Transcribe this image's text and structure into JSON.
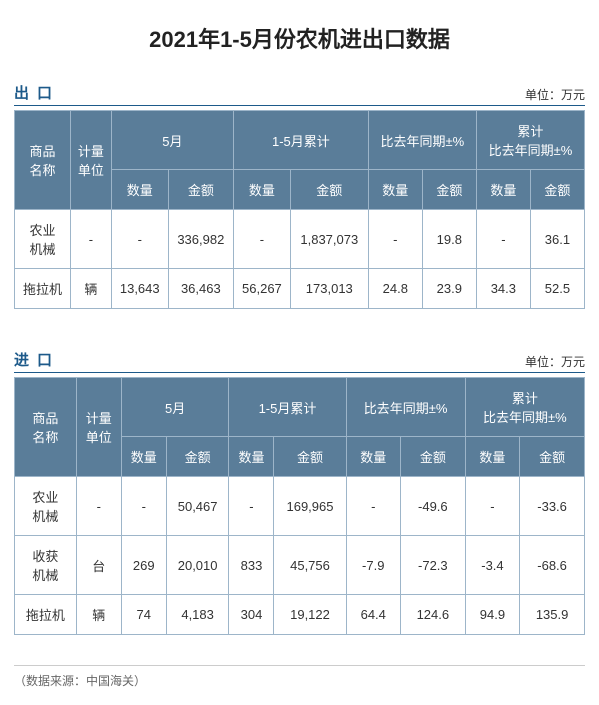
{
  "title": "2021年1-5月份农机进出口数据",
  "unitLabel": "单位：万元",
  "headers": {
    "product": "商品\n名称",
    "measure": "计量\n单位",
    "month": "5月",
    "ytd": "1-5月累计",
    "yoy": "比去年同期±%",
    "yoyCum": "累计\n比去年同期±%",
    "qty": "数量",
    "amt": "金额"
  },
  "export": {
    "label": "出口",
    "rows": [
      {
        "product": "农业\n机械",
        "measure": "-",
        "mQty": "-",
        "mAmt": "336,982",
        "yQty": "-",
        "yAmt": "1,837,073",
        "oQty": "-",
        "oAmt": "19.8",
        "cQty": "-",
        "cAmt": "36.1"
      },
      {
        "product": "拖拉机",
        "measure": "辆",
        "mQty": "13,643",
        "mAmt": "36,463",
        "yQty": "56,267",
        "yAmt": "173,013",
        "oQty": "24.8",
        "oAmt": "23.9",
        "cQty": "34.3",
        "cAmt": "52.5"
      }
    ]
  },
  "import": {
    "label": "进口",
    "rows": [
      {
        "product": "农业\n机械",
        "measure": "-",
        "mQty": "-",
        "mAmt": "50,467",
        "yQty": "-",
        "yAmt": "169,965",
        "oQty": "-",
        "oAmt": "-49.6",
        "cQty": "-",
        "cAmt": "-33.6"
      },
      {
        "product": "收获\n机械",
        "measure": "台",
        "mQty": "269",
        "mAmt": "20,010",
        "yQty": "833",
        "yAmt": "45,756",
        "oQty": "-7.9",
        "oAmt": "-72.3",
        "cQty": "-3.4",
        "cAmt": "-68.6"
      },
      {
        "product": "拖拉机",
        "measure": "辆",
        "mQty": "74",
        "mAmt": "4,183",
        "yQty": "304",
        "yAmt": "19,122",
        "oQty": "64.4",
        "oAmt": "124.6",
        "cQty": "94.9",
        "cAmt": "135.9"
      }
    ]
  },
  "source": "（数据来源：中国海关）"
}
